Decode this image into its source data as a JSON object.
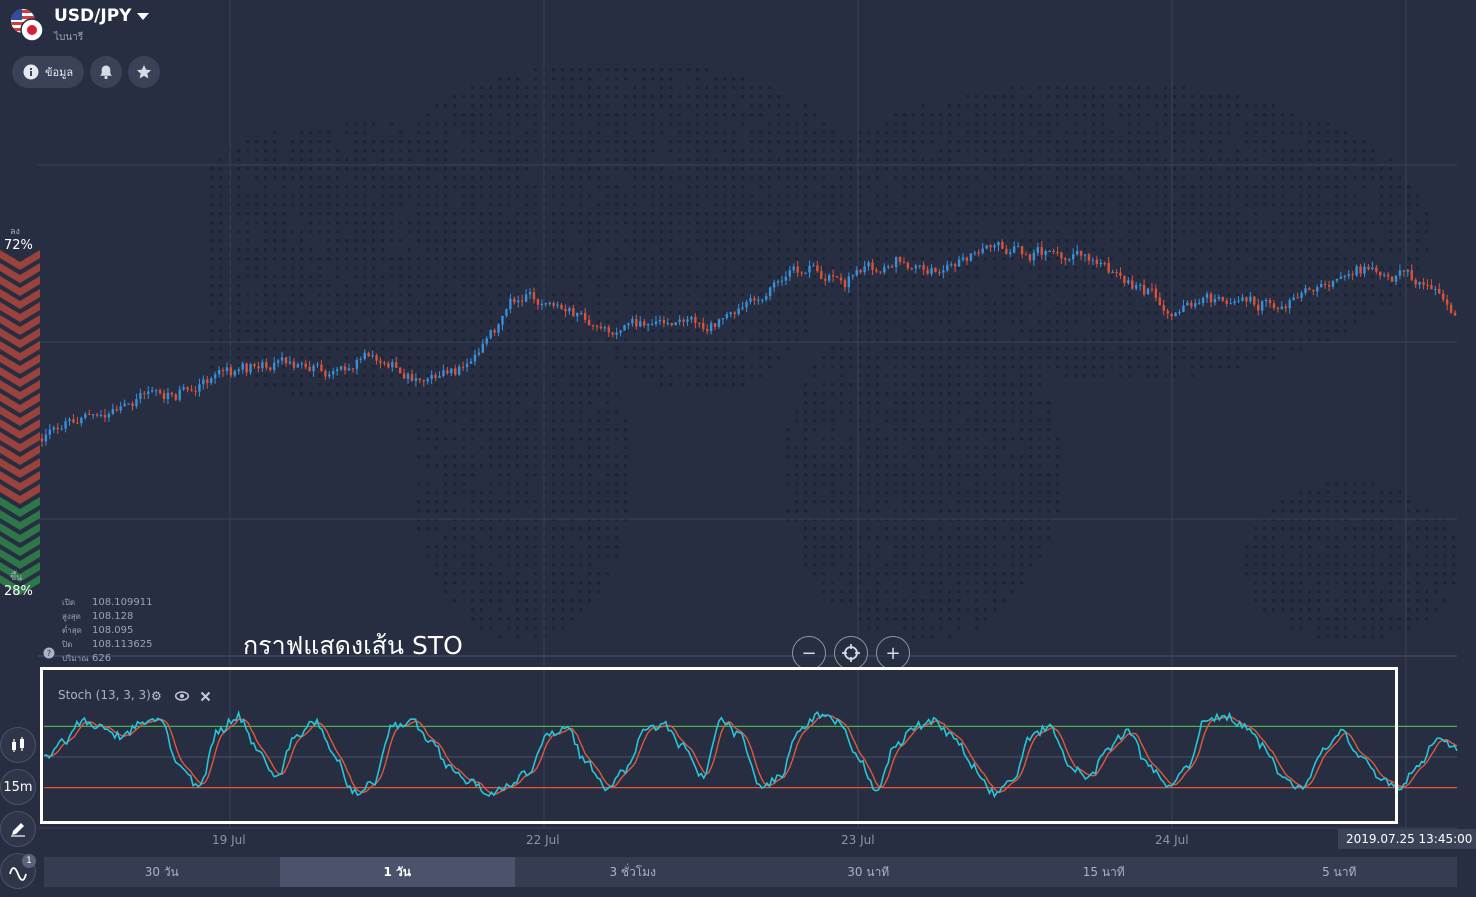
{
  "header": {
    "pair": "USD/JPY",
    "instrument_type": "ไบนารี",
    "info_label": "ข้อมูล"
  },
  "sentiment": {
    "down_label": "ลง",
    "down_pct": "72%",
    "up_label": "ขึ้น",
    "up_pct": "28%",
    "down_value": 72,
    "up_value": 28
  },
  "ohlc": {
    "open_label": "เปิด",
    "open": "108.109911",
    "high_label": "สูงสุด",
    "high": "108.128",
    "low_label": "ต่ำสุด",
    "low": "108.095",
    "close_label": "ปิด",
    "close": "108.113625",
    "volume_label": "ปริมาณ",
    "volume": "626"
  },
  "annotation": {
    "caption": "กราฟแสดงเส้น STO"
  },
  "indicator": {
    "label": "Stoch (13, 3, 3)"
  },
  "zoom": {
    "minus": "−",
    "plus": "+"
  },
  "timeline": {
    "dates": [
      "19 Jul",
      "22 Jul",
      "23 Jul",
      "24 Jul"
    ],
    "current_time": "2019.07.25 13:45:00"
  },
  "tools": {
    "timeframe": "15m",
    "indicator_count": "1"
  },
  "timeframes": [
    {
      "label": "30 วัน",
      "active": false
    },
    {
      "label": "1 วัน",
      "active": true
    },
    {
      "label": "3 ชั่วโมง",
      "active": false
    },
    {
      "label": "30 นาที",
      "active": false
    },
    {
      "label": "15 นาที",
      "active": false
    },
    {
      "label": "5 นาที",
      "active": false
    }
  ],
  "colors": {
    "background": "#272e42",
    "candle_up": "#3a8fd9",
    "candle_down": "#d9533a",
    "stoch_k": "#26c6da",
    "stoch_d": "#e0573b",
    "overbought_line": "#4caf50",
    "oversold_line": "#e05a3a"
  },
  "chart_data": {
    "type": "candlestick",
    "instrument": "USD/JPY",
    "x_dates": [
      "19 Jul",
      "22 Jul",
      "23 Jul",
      "24 Jul"
    ],
    "price_path_shape": [
      0.62,
      0.55,
      0.5,
      0.47,
      0.41,
      0.38,
      0.42,
      0.36,
      0.44,
      0.4,
      0.18,
      0.22,
      0.3,
      0.24,
      0.27,
      0.19,
      0.09,
      0.13,
      0.06,
      0.11,
      0.02,
      0.04,
      0.06,
      0.13,
      0.22,
      0.18,
      0.21,
      0.15,
      0.09,
      0.11,
      0.24
    ],
    "stochastic": {
      "label": "Stoch (13, 3, 3)",
      "overbought": 80,
      "oversold": 20,
      "k_shape": [
        50,
        65,
        85,
        78,
        70,
        82,
        88,
        40,
        20,
        75,
        90,
        60,
        30,
        70,
        85,
        50,
        15,
        25,
        80,
        85,
        65,
        40,
        25,
        15,
        20,
        35,
        70,
        80,
        45,
        20,
        35,
        75,
        82,
        60,
        30,
        85,
        70,
        20,
        30,
        75,
        90,
        85,
        50,
        20,
        60,
        80,
        85,
        70,
        40,
        15,
        25,
        70,
        80,
        40,
        30,
        60,
        75,
        45,
        20,
        40,
        85,
        90,
        80,
        60,
        30,
        20,
        55,
        75,
        50,
        30,
        20,
        40,
        70,
        60
      ]
    }
  }
}
